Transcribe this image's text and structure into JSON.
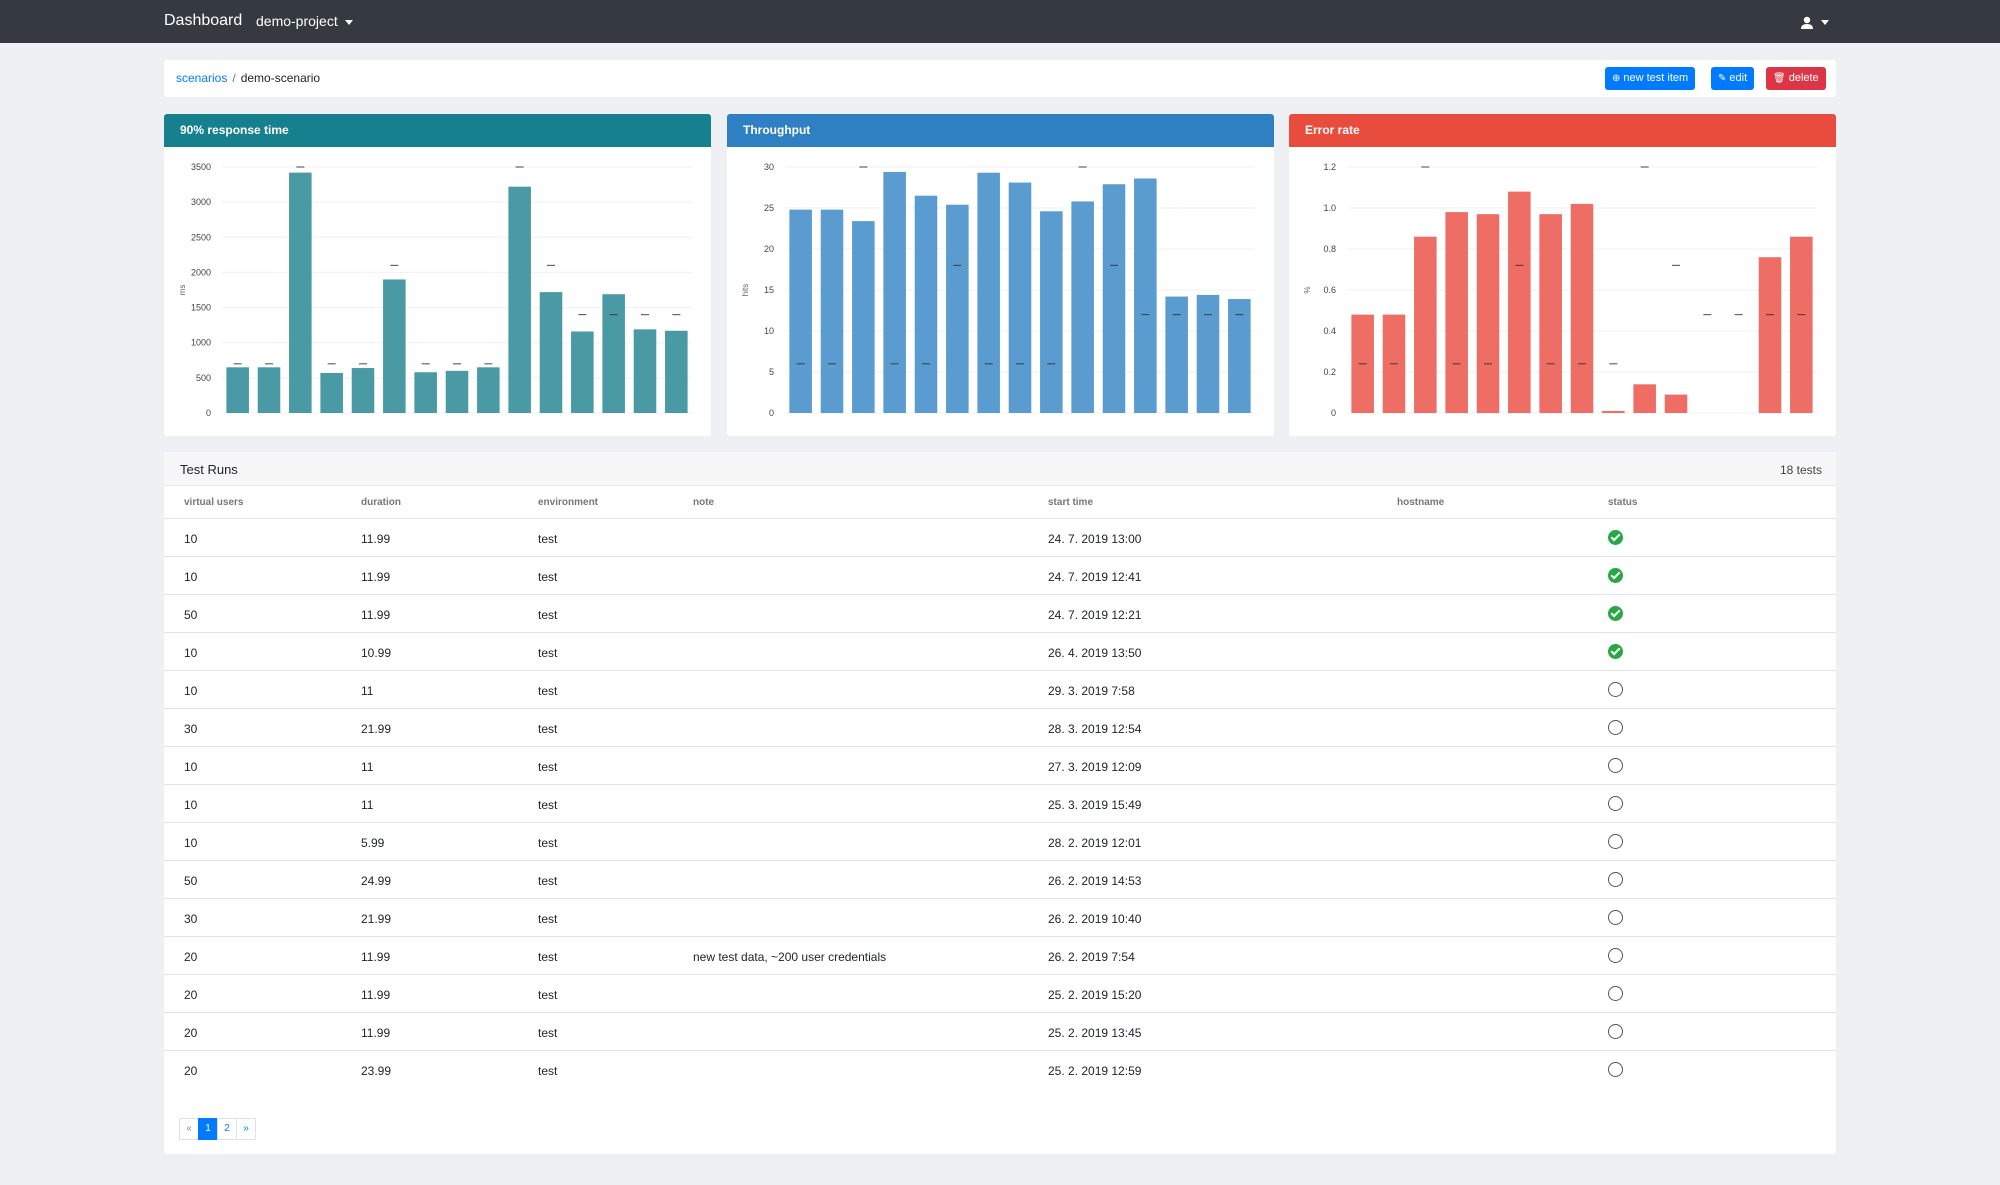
{
  "navbar": {
    "brand": "Dashboard",
    "project": "demo-project"
  },
  "breadcrumb": {
    "parent": "scenarios",
    "current": "demo-scenario"
  },
  "actions": {
    "new_label": "new test item",
    "edit_label": "edit",
    "delete_label": "delete"
  },
  "colors": {
    "teal": "#17808f",
    "blue": "#2e80c2",
    "red": "#e74c3c",
    "teal_bar": "#4a9aa5",
    "blue_bar": "#5a9ccf",
    "red_bar": "#ee6e66"
  },
  "chart_data": [
    {
      "type": "bar",
      "title": "90% response time",
      "ylabel": "ms",
      "ylim": [
        0,
        3500
      ],
      "yticks": [
        "0",
        "500",
        "1000",
        "1500",
        "2000",
        "2500",
        "3000",
        "3500"
      ],
      "values": [
        650,
        650,
        3420,
        570,
        640,
        1900,
        580,
        600,
        650,
        3220,
        1720,
        1160,
        1690,
        1190,
        1170
      ],
      "markers": [
        700,
        700,
        3500,
        700,
        700,
        2100,
        700,
        700,
        700,
        3500,
        2100,
        1400,
        1400,
        1400,
        1400
      ]
    },
    {
      "type": "bar",
      "title": "Throughput",
      "ylabel": "hits",
      "ylim": [
        0,
        30
      ],
      "yticks": [
        "0",
        "5",
        "10",
        "15",
        "20",
        "25",
        "30"
      ],
      "values": [
        24.8,
        24.8,
        23.4,
        29.4,
        26.5,
        25.4,
        29.3,
        28.1,
        24.6,
        25.8,
        27.9,
        28.6,
        14.2,
        14.4,
        13.9
      ],
      "markers": [
        6,
        6,
        30,
        6,
        6,
        18,
        6,
        6,
        6,
        30,
        18,
        12,
        12,
        12,
        12
      ]
    },
    {
      "type": "bar",
      "title": "Error rate",
      "ylabel": "%",
      "ylim": [
        0,
        1.2
      ],
      "yticks": [
        "0",
        "0.2",
        "0.4",
        "0.6",
        "0.8",
        "1.0",
        "1.2"
      ],
      "values": [
        0.48,
        0.48,
        0.86,
        0.98,
        0.97,
        1.08,
        0.97,
        1.02,
        0.01,
        0.14,
        0.09,
        0,
        0,
        0.76,
        0.86
      ],
      "markers": [
        0.24,
        0.24,
        1.2,
        0.24,
        0.24,
        0.72,
        0.24,
        0.24,
        0.24,
        1.2,
        0.72,
        0.48,
        0.48,
        0.48,
        0.48
      ]
    }
  ],
  "table": {
    "title": "Test Runs",
    "count": "18 tests",
    "columns": [
      "virtual users",
      "duration",
      "environment",
      "note",
      "start time",
      "hostname",
      "status"
    ],
    "rows": [
      [
        "10",
        "11.99",
        "test",
        "",
        "24. 7. 2019 13:00",
        "",
        "ok"
      ],
      [
        "10",
        "11.99",
        "test",
        "",
        "24. 7. 2019 12:41",
        "",
        "ok"
      ],
      [
        "50",
        "11.99",
        "test",
        "",
        "24. 7. 2019 12:21",
        "",
        "ok"
      ],
      [
        "10",
        "10.99",
        "test",
        "",
        "26. 4. 2019 13:50",
        "",
        "ok"
      ],
      [
        "10",
        "11",
        "test",
        "",
        "29. 3. 2019 7:58",
        "",
        "pending"
      ],
      [
        "30",
        "21.99",
        "test",
        "",
        "28. 3. 2019 12:54",
        "",
        "pending"
      ],
      [
        "10",
        "11",
        "test",
        "",
        "27. 3. 2019 12:09",
        "",
        "pending"
      ],
      [
        "10",
        "11",
        "test",
        "",
        "25. 3. 2019 15:49",
        "",
        "pending"
      ],
      [
        "10",
        "5.99",
        "test",
        "",
        "28. 2. 2019 12:01",
        "",
        "pending"
      ],
      [
        "50",
        "24.99",
        "test",
        "",
        "26. 2. 2019 14:53",
        "",
        "pending"
      ],
      [
        "30",
        "21.99",
        "test",
        "",
        "26. 2. 2019 10:40",
        "",
        "pending"
      ],
      [
        "20",
        "11.99",
        "test",
        "new test data, ~200 user credentials",
        "26. 2. 2019 7:54",
        "",
        "pending"
      ],
      [
        "20",
        "11.99",
        "test",
        "",
        "25. 2. 2019 15:20",
        "",
        "pending"
      ],
      [
        "20",
        "11.99",
        "test",
        "",
        "25. 2. 2019 13:45",
        "",
        "pending"
      ],
      [
        "20",
        "23.99",
        "test",
        "",
        "25. 2. 2019 12:59",
        "",
        "pending"
      ]
    ]
  },
  "pagination": {
    "prev": "«",
    "pages": [
      "1",
      "2"
    ],
    "active": "1",
    "next": "»"
  }
}
